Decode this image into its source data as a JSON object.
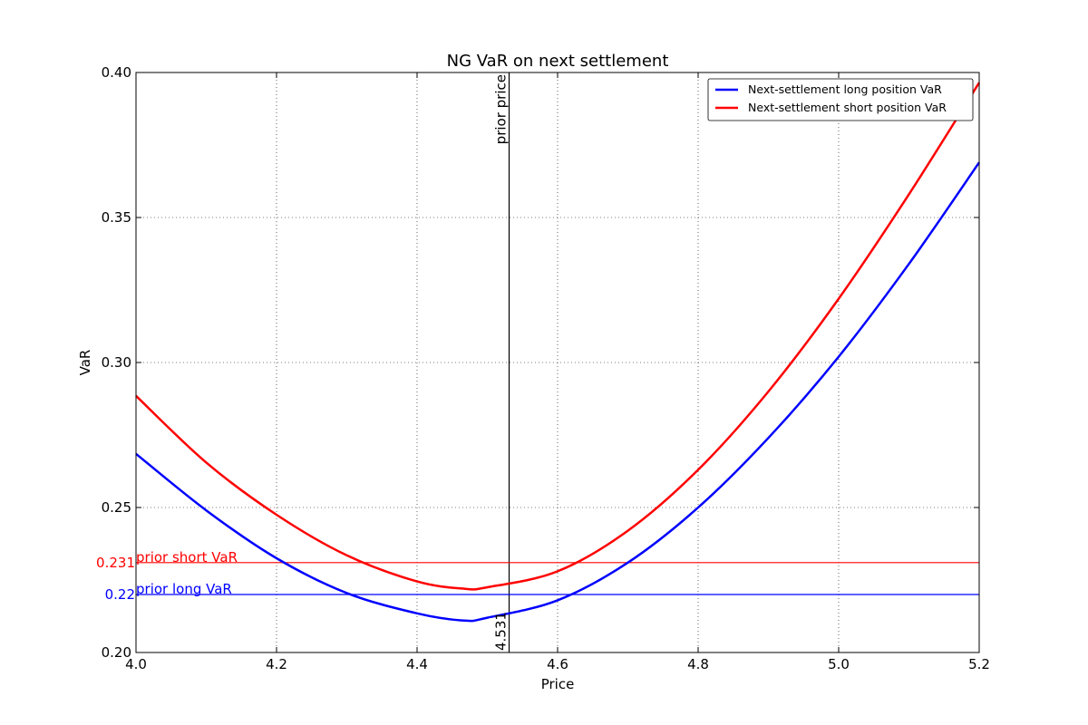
{
  "chart_data": {
    "type": "line",
    "title": "NG VaR on next settlement",
    "xlabel": "Price",
    "ylabel": "VaR",
    "xlim": [
      4.0,
      5.2
    ],
    "ylim": [
      0.2,
      0.4
    ],
    "xticks": [
      4.0,
      4.2,
      4.4,
      4.6,
      4.8,
      5.0,
      5.2
    ],
    "xtick_labels": [
      "4.0",
      "4.2",
      "4.4",
      "4.6",
      "4.8",
      "5.0",
      "5.2"
    ],
    "yticks": [
      0.2,
      0.25,
      0.3,
      0.35,
      0.4
    ],
    "ytick_labels": [
      "0.20",
      "0.25",
      "0.30",
      "0.35",
      "0.40"
    ],
    "grid": true,
    "legend_position": "top-right",
    "series": [
      {
        "name": "Next-settlement long position VaR",
        "color": "#0000ff",
        "x": [
          4.0,
          4.1,
          4.2,
          4.3,
          4.4,
          4.467,
          4.5,
          4.6,
          4.7,
          4.8,
          4.9,
          5.0,
          5.1,
          5.2
        ],
        "y": [
          0.2685,
          0.249,
          0.2325,
          0.2205,
          0.2135,
          0.211,
          0.212,
          0.218,
          0.231,
          0.25,
          0.274,
          0.302,
          0.334,
          0.369
        ]
      },
      {
        "name": "Next-settlement short position VaR",
        "color": "#ff0000",
        "x": [
          4.0,
          4.1,
          4.2,
          4.3,
          4.4,
          4.467,
          4.5,
          4.6,
          4.7,
          4.8,
          4.9,
          5.0,
          5.1,
          5.2
        ],
        "y": [
          0.2885,
          0.2655,
          0.2475,
          0.2335,
          0.2245,
          0.222,
          0.2225,
          0.228,
          0.242,
          0.263,
          0.29,
          0.322,
          0.358,
          0.3965
        ]
      }
    ],
    "annotations": {
      "prior_price": {
        "x": 4.531,
        "label": "prior price",
        "value_label": "4.531",
        "color": "#000000"
      },
      "prior_short": {
        "y": 0.231,
        "label": "prior short VaR",
        "value_label": "0.231",
        "color": "#ff0000"
      },
      "prior_long": {
        "y": 0.22,
        "label": "prior long VaR",
        "value_label": "0.22",
        "color": "#0000ff"
      }
    }
  }
}
